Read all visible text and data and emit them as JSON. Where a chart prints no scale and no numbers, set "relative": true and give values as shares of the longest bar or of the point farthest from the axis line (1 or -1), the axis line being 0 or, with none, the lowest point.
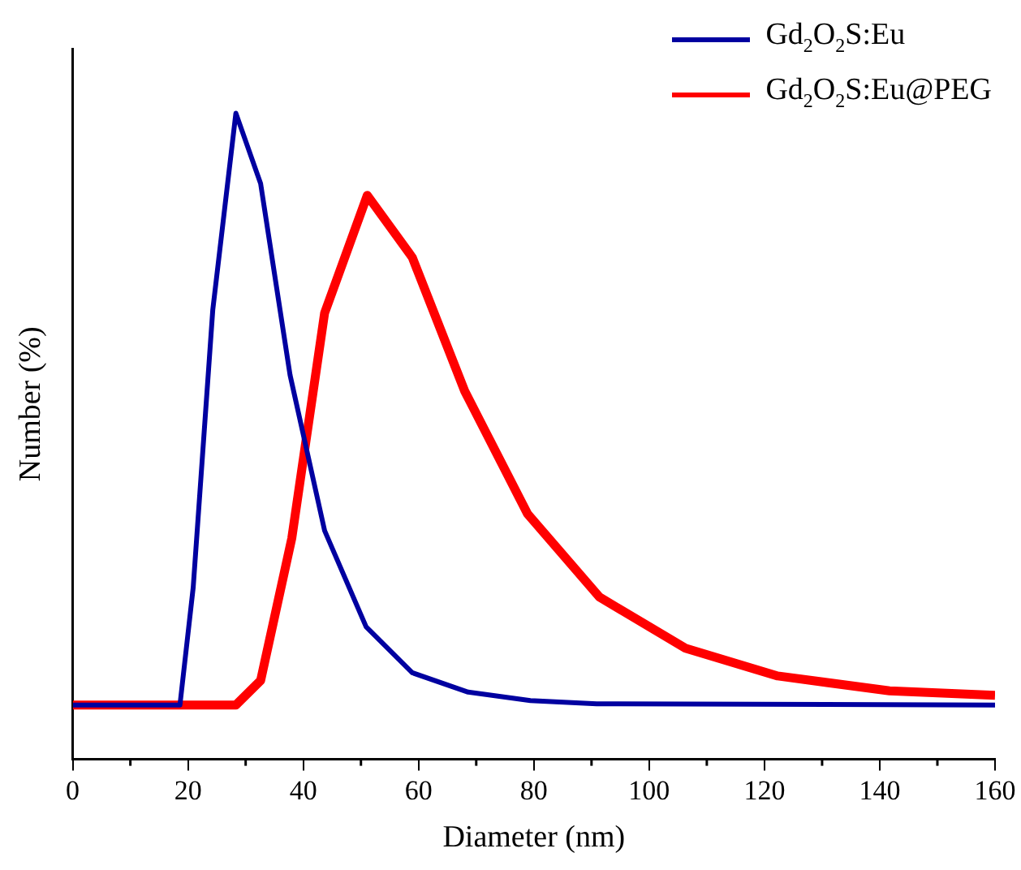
{
  "chart_data": {
    "type": "line",
    "relative": true,
    "xlabel": "Diameter (nm)",
    "ylabel": "Number (%)",
    "xlim": [
      0,
      160
    ],
    "xticks": [
      0,
      20,
      40,
      60,
      80,
      100,
      120,
      140,
      160
    ],
    "grid": false,
    "legend": "top right",
    "tick_labels": "x",
    "marker": "none",
    "line_style": "solid",
    "series": [
      {
        "name": "Gd$_{2}$O$_{2}$S:Eu",
        "color": "#0000a0",
        "x": [
          0,
          18.6,
          20.9,
          24.3,
          28.3,
          32.6,
          37.7,
          43.7,
          50.9,
          58.9,
          68.6,
          79.4,
          90.9,
          160
        ],
        "values": [
          0.084,
          0.084,
          0.266,
          0.696,
          1,
          0.891,
          0.595,
          0.354,
          0.205,
          0.134,
          0.104,
          0.091,
          0.086,
          0.084
        ]
      },
      {
        "name": "Gd$_{2}$O$_{2}$S:Eu@PEG",
        "color": "#ff0000",
        "x": [
          0,
          28.3,
          32.6,
          38,
          43.7,
          51.1,
          58.9,
          68,
          78.9,
          91.4,
          106.3,
          122.3,
          141.7,
          160
        ],
        "values": [
          0.084,
          0.084,
          0.122,
          0.342,
          0.691,
          0.873,
          0.777,
          0.57,
          0.38,
          0.251,
          0.172,
          0.129,
          0.106,
          0.099
        ]
      }
    ]
  }
}
